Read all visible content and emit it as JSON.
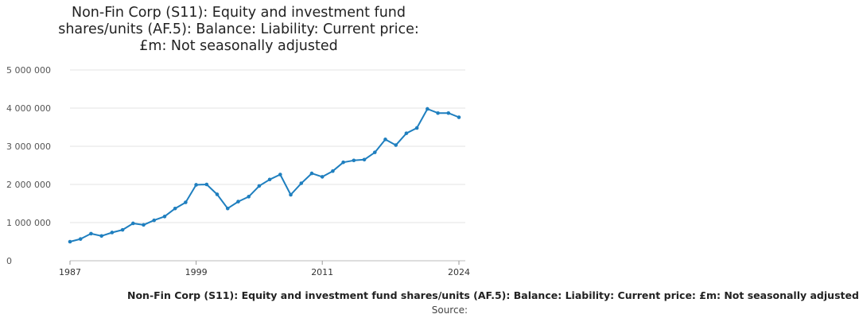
{
  "chart_data": {
    "type": "line",
    "title": "Non-Fin Corp (S11): Equity and investment fund shares/units (AF.5): Balance: Liability: Current price: £m: Not seasonally adjusted",
    "xlabel": "",
    "ylabel": "",
    "x_tick_labels": [
      "1987",
      "1999",
      "2011",
      "2024"
    ],
    "y_tick_labels": [
      "0",
      "1 000 000",
      "2 000 000",
      "3 000 000",
      "4 000 000",
      "5 000 000"
    ],
    "ylim": [
      0,
      5000000
    ],
    "xlim": [
      1987,
      2024
    ],
    "grid": true,
    "legend": "bottom",
    "series": [
      {
        "name": "Non-Fin Corp (S11): Equity and investment fund shares/units (AF.5): Balance: Liability: Current price: £m: Not seasonally adjusted",
        "color": "#1f7fbf",
        "x": [
          1987,
          1988,
          1989,
          1990,
          1991,
          1992,
          1993,
          1994,
          1995,
          1996,
          1997,
          1998,
          1999,
          2000,
          2001,
          2002,
          2003,
          2004,
          2005,
          2006,
          2007,
          2008,
          2009,
          2010,
          2011,
          2012,
          2013,
          2014,
          2015,
          2016,
          2017,
          2018,
          2019,
          2020,
          2021,
          2022,
          2023,
          2024
        ],
        "values": [
          500000,
          570000,
          710000,
          650000,
          740000,
          810000,
          980000,
          940000,
          1060000,
          1160000,
          1370000,
          1530000,
          1990000,
          2000000,
          1740000,
          1370000,
          1550000,
          1680000,
          1960000,
          2130000,
          2260000,
          1730000,
          2030000,
          2290000,
          2200000,
          2350000,
          2580000,
          2630000,
          2650000,
          2840000,
          3180000,
          3030000,
          3340000,
          3480000,
          3980000,
          3870000,
          3870000,
          3760000
        ]
      }
    ]
  },
  "source": "Source:"
}
